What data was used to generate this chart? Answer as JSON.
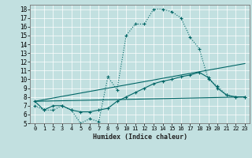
{
  "title": "",
  "xlabel": "Humidex (Indice chaleur)",
  "ylabel": "",
  "xlim": [
    -0.5,
    23.5
  ],
  "ylim": [
    5,
    18.5
  ],
  "yticks": [
    5,
    6,
    7,
    8,
    9,
    10,
    11,
    12,
    13,
    14,
    15,
    16,
    17,
    18
  ],
  "xticks": [
    0,
    1,
    2,
    3,
    4,
    5,
    6,
    7,
    8,
    9,
    10,
    11,
    12,
    13,
    14,
    15,
    16,
    17,
    18,
    19,
    20,
    21,
    22,
    23
  ],
  "bg_color": "#c2e0e0",
  "line_color": "#006666",
  "grid_color": "#ffffff",
  "lines": [
    {
      "x": [
        0,
        1,
        2,
        3,
        4,
        5,
        6,
        7,
        8,
        9,
        10,
        11,
        12,
        13,
        14,
        15,
        16,
        17,
        18,
        19,
        20,
        21,
        22,
        23
      ],
      "y": [
        7.0,
        6.5,
        6.5,
        7.0,
        6.5,
        5.0,
        5.5,
        5.2,
        10.3,
        8.8,
        15.0,
        16.3,
        16.3,
        18.0,
        18.0,
        17.7,
        17.0,
        14.8,
        13.5,
        10.0,
        9.2,
        8.2,
        8.0,
        8.0
      ],
      "marker": "+",
      "linestyle": "dotted"
    },
    {
      "x": [
        0,
        1,
        2,
        3,
        4,
        5,
        6,
        7,
        8,
        9,
        10,
        11,
        12,
        13,
        14,
        15,
        16,
        17,
        18,
        19,
        20,
        21,
        22,
        23
      ],
      "y": [
        7.5,
        6.5,
        7.0,
        7.0,
        6.5,
        6.3,
        6.3,
        6.5,
        6.7,
        7.5,
        8.0,
        8.5,
        9.0,
        9.5,
        9.8,
        10.0,
        10.3,
        10.5,
        10.8,
        10.2,
        9.0,
        8.2,
        8.0,
        8.0
      ],
      "marker": "+",
      "linestyle": "solid"
    },
    {
      "x": [
        0,
        23
      ],
      "y": [
        7.5,
        8.0
      ],
      "marker": null,
      "linestyle": "solid"
    },
    {
      "x": [
        0,
        23
      ],
      "y": [
        7.5,
        11.8
      ],
      "marker": null,
      "linestyle": "solid"
    }
  ]
}
